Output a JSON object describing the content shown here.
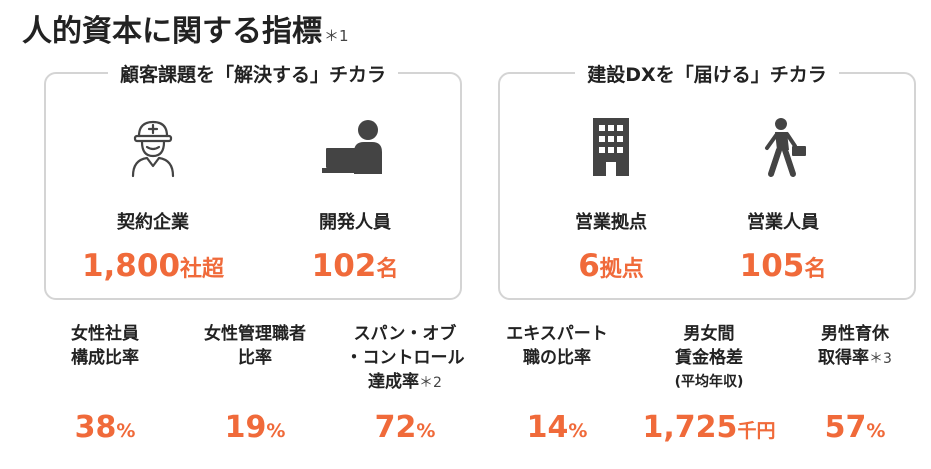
{
  "title": {
    "text": "人的資本に関する指標",
    "note": "＊1"
  },
  "panels": [
    {
      "heading": "顧客課題を「解決する」チカラ",
      "metrics": [
        {
          "icon": "worker-helmet-icon",
          "label": "契約企業",
          "number": "1,800",
          "unit": "社超"
        },
        {
          "icon": "developer-laptop-icon",
          "label": "開発人員",
          "number": "102",
          "unit": "名"
        }
      ]
    },
    {
      "heading": "建設DXを「届ける」チカラ",
      "metrics": [
        {
          "icon": "office-building-icon",
          "label": "営業拠点",
          "number": "6",
          "unit": "拠点"
        },
        {
          "icon": "businessman-walking-icon",
          "label": "営業人員",
          "number": "105",
          "unit": "名"
        }
      ]
    }
  ],
  "stats": [
    {
      "lines": [
        "女性社員",
        "構成比率"
      ],
      "note": "",
      "sub": "",
      "number": "38",
      "unit": "%"
    },
    {
      "lines": [
        "女性管理職者",
        "比率"
      ],
      "note": "",
      "sub": "",
      "number": "19",
      "unit": "%"
    },
    {
      "lines": [
        "スパン・オブ",
        "・コントロール",
        "達成率"
      ],
      "note": "＊2",
      "sub": "",
      "number": "72",
      "unit": "%"
    },
    {
      "lines": [
        "エキスパート",
        "職の比率"
      ],
      "note": "",
      "sub": "",
      "number": "14",
      "unit": "%"
    },
    {
      "lines": [
        "男女間",
        "賃金格差"
      ],
      "note": "",
      "sub": "(平均年収)",
      "number": "1,725",
      "unit": "千円"
    },
    {
      "lines": [
        "男性育休",
        "取得率"
      ],
      "note": "＊3",
      "sub": "",
      "number": "57",
      "unit": "%"
    }
  ],
  "colors": {
    "accent": "#f06a3a",
    "border": "#d4d4d4",
    "text": "#222222"
  }
}
